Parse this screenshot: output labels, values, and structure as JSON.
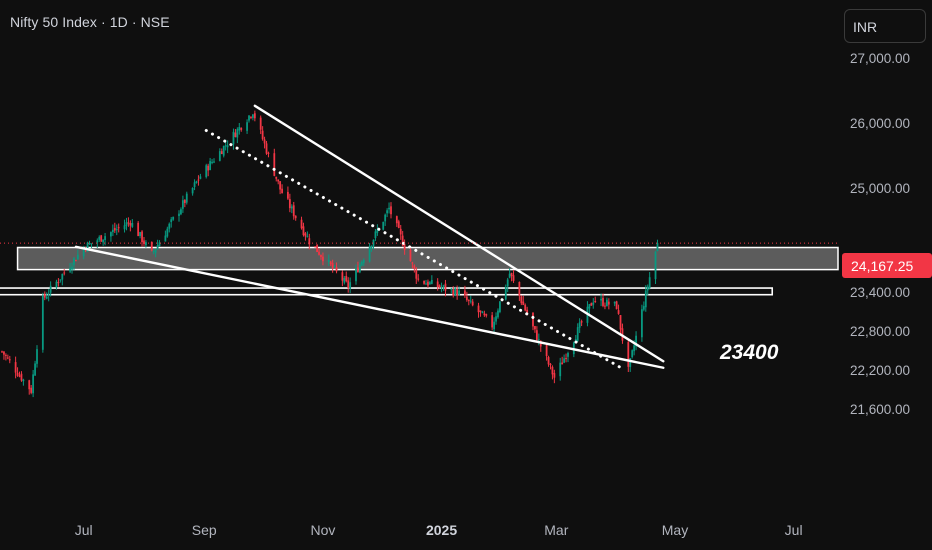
{
  "header": {
    "title": "Nifty 50 Index · 1D · NSE"
  },
  "currency": {
    "label": "INR"
  },
  "price_axis": {
    "ticks": [
      "27,000.00",
      "26,000.00",
      "25,000.00",
      "23,400.00",
      "22,800.00",
      "22,200.00",
      "21,600.00"
    ],
    "current_price": "24,167.25"
  },
  "time_axis": {
    "ticks": [
      "Jul",
      "Sep",
      "Nov",
      "2025",
      "Mar",
      "May",
      "Jul"
    ]
  },
  "annotation": {
    "level_label": "23400"
  },
  "colors": {
    "background": "#0f0f0f",
    "up_candle": "#089981",
    "down_candle": "#f23645",
    "drawing": "#ffffff",
    "price_badge": "#f23645",
    "axis_text": "#b2b5be"
  },
  "chart_data": {
    "type": "candlestick",
    "symbol": "Nifty 50 Index",
    "interval": "1D",
    "exchange": "NSE",
    "last_price": 24167.25,
    "x_range": [
      "2024-05-20",
      "2025-07-31"
    ],
    "y_range": [
      21100,
      27150
    ],
    "closes_approx": [
      {
        "date": "2024-05-20",
        "close": 22500
      },
      {
        "date": "2024-06-04",
        "close": 21900
      },
      {
        "date": "2024-06-10",
        "close": 23300
      },
      {
        "date": "2024-07-01",
        "close": 24100
      },
      {
        "date": "2024-07-25",
        "close": 24500
      },
      {
        "date": "2024-08-05",
        "close": 24000
      },
      {
        "date": "2024-08-30",
        "close": 25200
      },
      {
        "date": "2024-09-26",
        "close": 26200
      },
      {
        "date": "2024-10-10",
        "close": 25000
      },
      {
        "date": "2024-10-25",
        "close": 24200
      },
      {
        "date": "2024-11-14",
        "close": 23500
      },
      {
        "date": "2024-12-05",
        "close": 24700
      },
      {
        "date": "2024-12-20",
        "close": 23600
      },
      {
        "date": "2025-01-10",
        "close": 23400
      },
      {
        "date": "2025-01-27",
        "close": 22900
      },
      {
        "date": "2025-02-05",
        "close": 23700
      },
      {
        "date": "2025-02-28",
        "close": 22100
      },
      {
        "date": "2025-03-20",
        "close": 23300
      },
      {
        "date": "2025-04-01",
        "close": 23200
      },
      {
        "date": "2025-04-07",
        "close": 22200
      },
      {
        "date": "2025-04-22",
        "close": 24167.25
      }
    ],
    "horizontal_levels": [
      {
        "label": "23400",
        "from_date": "2024-05-20",
        "to_date": "2025-06-20",
        "price": 23430
      },
      {
        "from_date": "2024-05-20",
        "to_date": "2025-06-20",
        "price": 23420
      }
    ],
    "zones": [
      {
        "from_date": "2024-05-28",
        "to_date": "2025-07-31",
        "price_low": 23760,
        "price_high": 24100
      }
    ],
    "trendlines": [
      {
        "style": "solid",
        "from": {
          "date": "2024-09-27",
          "price": 26280
        },
        "to": {
          "date": "2025-04-25",
          "price": 22350
        }
      },
      {
        "style": "solid",
        "from": {
          "date": "2024-06-27",
          "price": 24110
        },
        "to": {
          "date": "2025-04-25",
          "price": 22250
        }
      },
      {
        "style": "dotted",
        "from": {
          "date": "2024-09-02",
          "price": 25900
        },
        "to": {
          "date": "2025-04-05",
          "price": 22220
        }
      }
    ]
  }
}
